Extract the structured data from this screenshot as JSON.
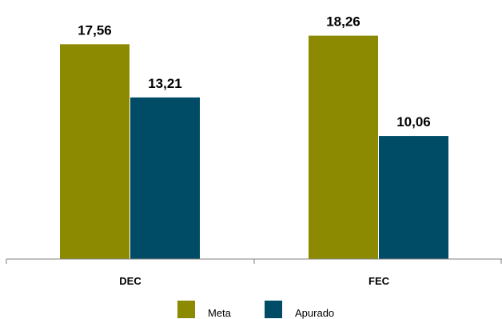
{
  "chart_data": {
    "type": "bar",
    "categories": [
      "DEC",
      "FEC"
    ],
    "series": [
      {
        "name": "Meta",
        "values": [
          17.56,
          18.26
        ],
        "labels": [
          "17,56",
          "18,26"
        ],
        "color": "#8b8a00"
      },
      {
        "name": "Apurado",
        "values": [
          13.21,
          10.06
        ],
        "labels": [
          "13,21",
          "10,06"
        ],
        "color": "#004c66"
      }
    ],
    "ylim": [
      0,
      20
    ],
    "grid": false,
    "legend_position": "bottom"
  }
}
